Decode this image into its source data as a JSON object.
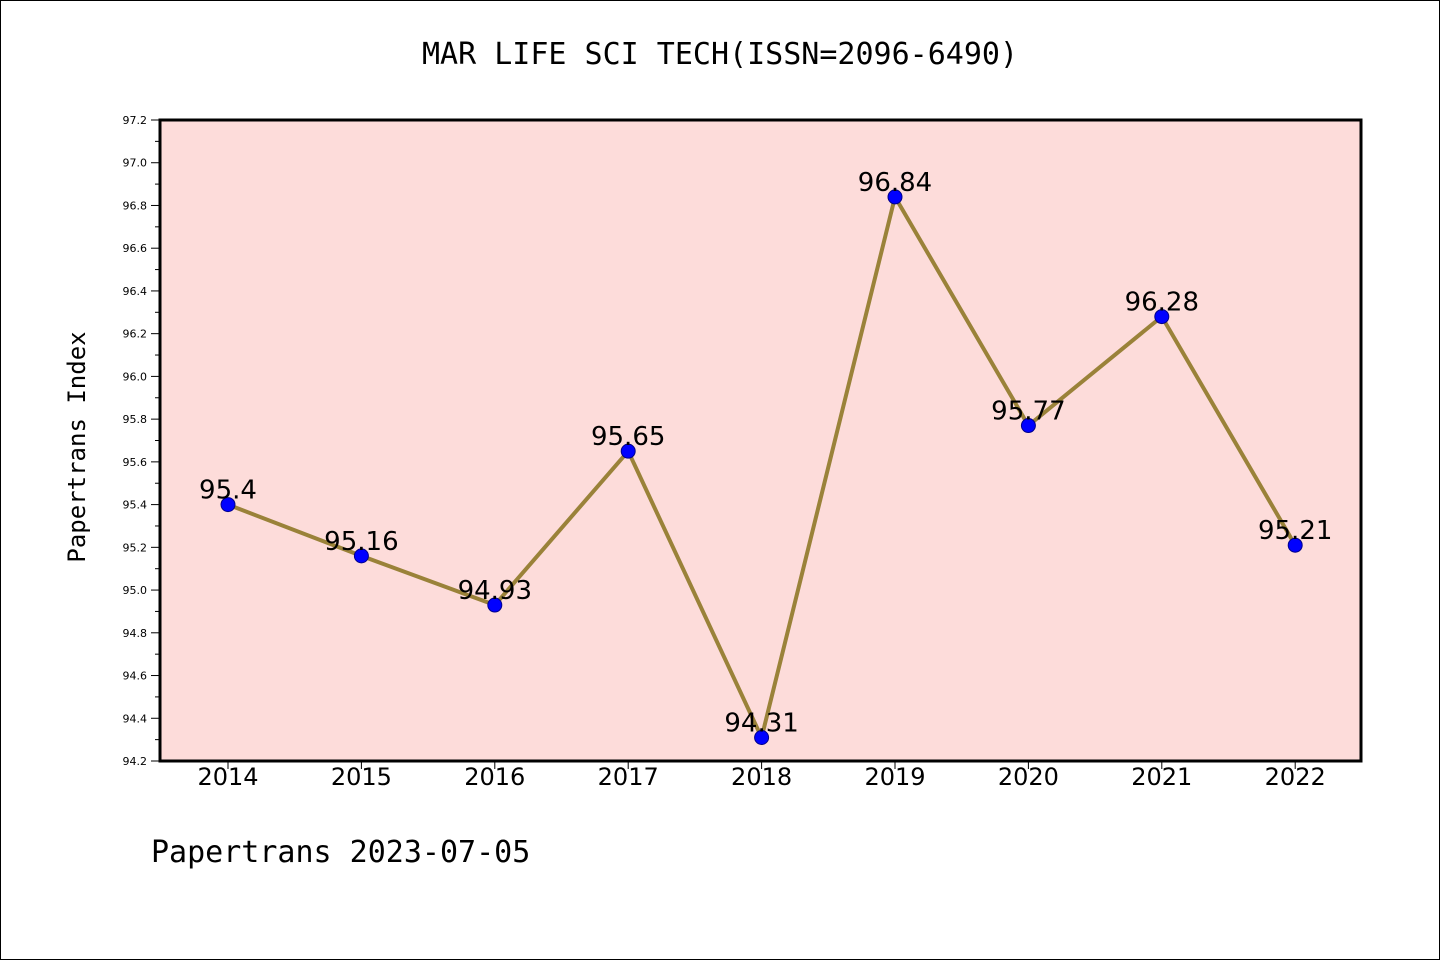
{
  "title": "MAR LIFE SCI TECH(ISSN=2096-6490)",
  "footer": "Papertrans 2023-07-05",
  "colors": {
    "plot_background": "#FDDCDA",
    "line": "#9A8239",
    "marker": "#0000FF",
    "axis": "#000000"
  },
  "chart_data": {
    "type": "line",
    "title": "MAR LIFE SCI TECH(ISSN=2096-6490)",
    "xlabel": "",
    "ylabel": "Papertrans Index",
    "categories": [
      "2014",
      "2015",
      "2016",
      "2017",
      "2018",
      "2019",
      "2020",
      "2021",
      "2022"
    ],
    "series": [
      {
        "values": [
          95.4,
          95.16,
          94.93,
          95.65,
          94.31,
          96.84,
          95.77,
          96.28,
          95.21
        ]
      }
    ],
    "data_labels": [
      "95.4",
      "95.16",
      "94.93",
      "95.65",
      "94.31",
      "96.84",
      "95.77",
      "96.28",
      "95.21"
    ],
    "ylim": [
      94.2,
      97.2
    ],
    "yticks": [
      94.2,
      94.4,
      94.6,
      94.8,
      95.0,
      95.2,
      95.4,
      95.6,
      95.8,
      96.0,
      96.2,
      96.4,
      96.6,
      96.8,
      97.0,
      97.2
    ],
    "ytick_labels": [
      "94.2",
      "94.4",
      "94.6",
      "94.8",
      "95.0",
      "95.2",
      "95.4",
      "95.6",
      "95.8",
      "96.0",
      "96.2",
      "96.4",
      "96.6",
      "96.8",
      "97.0",
      "97.2"
    ],
    "grid": false,
    "legend": "none"
  }
}
